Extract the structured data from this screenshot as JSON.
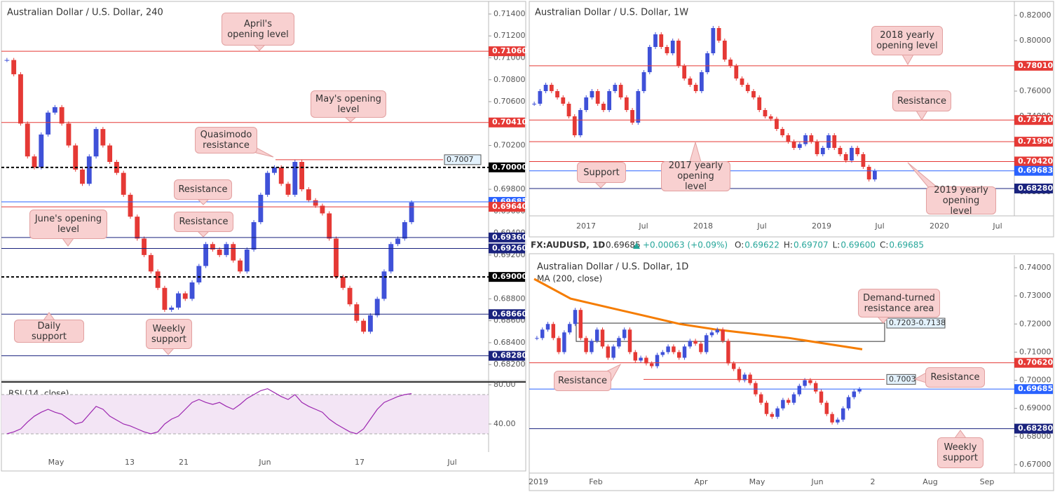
{
  "header": {
    "symbol": "FX:AUDUSD, 1D",
    "price": "0.69685",
    "change": "+0.00063 (+0.09%)",
    "items": [
      {
        "label": "O:",
        "value": "0.69622"
      },
      {
        "label": "H:",
        "value": "0.69707"
      },
      {
        "label": "L:",
        "value": "0.69600"
      },
      {
        "label": "C:",
        "value": "0.69685"
      }
    ]
  },
  "panels": [
    {
      "title": "Australian Dollar / U.S. Dollar, 240",
      "ylim": [
        0.68054,
        0.71515
      ],
      "yticks": [
        {
          "value": 0.714,
          "label": "0.71400"
        },
        {
          "value": 0.712,
          "label": "0.71200"
        },
        {
          "value": 0.71,
          "label": "0.71000"
        },
        {
          "value": 0.708,
          "label": "0.70800"
        },
        {
          "value": 0.706,
          "label": "0.70600"
        },
        {
          "value": 0.704,
          "label": "0.70400"
        },
        {
          "value": 0.702,
          "label": "0.70200"
        },
        {
          "value": 0.7,
          "label": "0.70000"
        },
        {
          "value": 0.698,
          "label": "0.69800"
        },
        {
          "value": 0.696,
          "label": "0.69600"
        },
        {
          "value": 0.694,
          "label": "0.69400"
        },
        {
          "value": 0.692,
          "label": "0.69200"
        },
        {
          "value": 0.69,
          "label": "0.69000"
        },
        {
          "value": 0.688,
          "label": "0.68800"
        },
        {
          "value": 0.686,
          "label": "0.68600"
        },
        {
          "value": 0.684,
          "label": "0.68400"
        },
        {
          "value": 0.682,
          "label": "0.68200"
        }
      ],
      "levels": [
        {
          "value": 0.7106,
          "label": "0.71060",
          "color": "#e53935"
        },
        {
          "value": 0.7041,
          "label": "0.70410",
          "color": "#e53935"
        },
        {
          "value": 0.7,
          "label": "0.70000",
          "color": "#000000",
          "style": "dashed"
        },
        {
          "value": 0.69685,
          "label": "0.69685",
          "color": "#2962ff"
        },
        {
          "value": 0.6964,
          "label": "0.69640",
          "color": "#e53935"
        },
        {
          "value": 0.6936,
          "label": "0.69360",
          "color": "#1a237e"
        },
        {
          "value": 0.6926,
          "label": "0.69260",
          "color": "#1a237e"
        },
        {
          "value": 0.69,
          "label": "0.69000",
          "color": "#000000",
          "style": "dashed"
        },
        {
          "value": 0.6866,
          "label": "0.68660",
          "color": "#1a237e"
        },
        {
          "value": 0.6828,
          "label": "0.68280",
          "color": "#1a237e"
        }
      ],
      "markers": [
        {
          "value": 0.7007,
          "label": "0.7007"
        }
      ],
      "xticks": [
        "May",
        "13",
        "21",
        "Jun",
        "17",
        "Jul"
      ],
      "closes": [
        0.7098,
        0.7085,
        0.704,
        0.701,
        0.7,
        0.703,
        0.705,
        0.7055,
        0.704,
        0.702,
        0.6998,
        0.6985,
        0.701,
        0.7035,
        0.702,
        0.7005,
        0.6995,
        0.6975,
        0.6955,
        0.6935,
        0.692,
        0.6905,
        0.689,
        0.687,
        0.6872,
        0.6885,
        0.688,
        0.6895,
        0.691,
        0.693,
        0.6925,
        0.692,
        0.693,
        0.6915,
        0.6905,
        0.6925,
        0.695,
        0.6975,
        0.6995,
        0.7,
        0.6985,
        0.6975,
        0.7005,
        0.698,
        0.697,
        0.6965,
        0.6958,
        0.6935,
        0.69,
        0.689,
        0.6875,
        0.686,
        0.685,
        0.6865,
        0.688,
        0.6905,
        0.693,
        0.6935,
        0.695,
        0.6968
      ],
      "annotations": [
        "April's opening level",
        "May's opening level",
        "Quasimodo resistance",
        "Resistance",
        "Resistance",
        "June's opening level",
        "Daily support",
        "Weekly support"
      ],
      "rsi": {
        "label": "RSI (14, close)",
        "ylim": [
          11.4,
          82.86
        ],
        "yticks": [
          {
            "value": 80,
            "label": "80.00"
          },
          {
            "value": 40,
            "label": "40.00"
          }
        ],
        "bands": [
          70,
          30
        ],
        "color": "#9c27b0",
        "values": [
          30,
          32,
          35,
          42,
          48,
          52,
          55,
          52,
          50,
          45,
          40,
          42,
          50,
          58,
          55,
          48,
          44,
          40,
          38,
          35,
          32,
          30,
          32,
          40,
          45,
          48,
          55,
          62,
          65,
          62,
          60,
          62,
          58,
          55,
          60,
          66,
          70,
          74,
          76,
          72,
          68,
          65,
          70,
          62,
          58,
          55,
          52,
          45,
          40,
          36,
          32,
          30,
          35,
          45,
          55,
          62,
          65,
          68,
          70,
          71
        ]
      }
    },
    {
      "title": "Australian Dollar / U.S. Dollar, 1W",
      "ylim": [
        0.66111,
        0.83111
      ],
      "yticks": [
        {
          "value": 0.82,
          "label": "0.82000"
        },
        {
          "value": 0.8,
          "label": "0.80000"
        },
        {
          "value": 0.78,
          "label": "0.78000"
        },
        {
          "value": 0.76,
          "label": "0.76000"
        },
        {
          "value": 0.74,
          "label": "0.74000"
        },
        {
          "value": 0.72,
          "label": "0.72000"
        },
        {
          "value": 0.7,
          "label": "0.70000"
        },
        {
          "value": 0.68,
          "label": "0.68000"
        }
      ],
      "levels": [
        {
          "value": 0.7801,
          "label": "0.78010",
          "color": "#e53935"
        },
        {
          "value": 0.7371,
          "label": "0.73710",
          "color": "#e53935"
        },
        {
          "value": 0.7199,
          "label": "0.71990",
          "color": "#e53935"
        },
        {
          "value": 0.7042,
          "label": "0.70420",
          "color": "#e53935"
        },
        {
          "value": 0.69683,
          "label": "0.69683",
          "color": "#2962ff"
        },
        {
          "value": 0.6828,
          "label": "0.68280",
          "color": "#1a237e"
        }
      ],
      "xticks": [
        "2017",
        "Jul",
        "2018",
        "Jul",
        "2019",
        "Jul",
        "2020",
        "Jul"
      ],
      "closes": [
        0.75,
        0.76,
        0.765,
        0.76,
        0.755,
        0.75,
        0.74,
        0.725,
        0.745,
        0.755,
        0.76,
        0.75,
        0.745,
        0.76,
        0.765,
        0.755,
        0.745,
        0.735,
        0.76,
        0.775,
        0.795,
        0.805,
        0.795,
        0.79,
        0.8,
        0.78,
        0.77,
        0.765,
        0.76,
        0.775,
        0.79,
        0.81,
        0.8,
        0.785,
        0.78,
        0.77,
        0.765,
        0.76,
        0.755,
        0.745,
        0.74,
        0.738,
        0.73,
        0.725,
        0.72,
        0.715,
        0.718,
        0.725,
        0.72,
        0.71,
        0.715,
        0.725,
        0.715,
        0.71,
        0.705,
        0.715,
        0.71,
        0.7,
        0.69,
        0.6968
      ],
      "annotations": [
        "2018 yearly opening level",
        "Resistance",
        "Support",
        "2017 yearly opening level",
        "2019 yearly opening level"
      ]
    },
    {
      "title": "Australian Dollar / U.S. Dollar, 1D",
      "indicator": "MA (200, close)",
      "ylim": [
        0.667,
        0.74448
      ],
      "yticks": [
        {
          "value": 0.74,
          "label": "0.74000"
        },
        {
          "value": 0.73,
          "label": "0.73000"
        },
        {
          "value": 0.72,
          "label": "0.72000"
        },
        {
          "value": 0.71,
          "label": "0.71000"
        },
        {
          "value": 0.7,
          "label": "0.70000"
        },
        {
          "value": 0.69,
          "label": "0.69000"
        },
        {
          "value": 0.68,
          "label": "0.68000"
        },
        {
          "value": 0.67,
          "label": "0.67000"
        }
      ],
      "levels": [
        {
          "value": 0.7062,
          "label": "0.70620",
          "color": "#e53935"
        },
        {
          "value": 0.69685,
          "label": "0.69685",
          "color": "#2962ff"
        },
        {
          "value": 0.6828,
          "label": "0.68280",
          "color": "#1a237e"
        }
      ],
      "markers": [
        {
          "value": 0.7003,
          "label": "0.7003"
        }
      ],
      "zone": {
        "label": "0.7203-0.7138",
        "high": 0.7203,
        "low": 0.7138
      },
      "ma": {
        "color": "#f57c00",
        "values": [
          0.736,
          0.729,
          0.726,
          0.723,
          0.72,
          0.718,
          0.7165,
          0.715,
          0.713,
          0.711
        ]
      },
      "xticks": [
        "2019",
        "Feb",
        "Apr",
        "May",
        "Jun",
        "2",
        "Aug",
        "Sep"
      ],
      "closes": [
        0.715,
        0.718,
        0.72,
        0.715,
        0.71,
        0.717,
        0.72,
        0.725,
        0.715,
        0.71,
        0.714,
        0.718,
        0.712,
        0.708,
        0.712,
        0.715,
        0.718,
        0.71,
        0.707,
        0.708,
        0.706,
        0.705,
        0.709,
        0.71,
        0.712,
        0.71,
        0.708,
        0.712,
        0.714,
        0.713,
        0.71,
        0.716,
        0.717,
        0.718,
        0.714,
        0.706,
        0.704,
        0.7,
        0.702,
        0.699,
        0.695,
        0.692,
        0.688,
        0.687,
        0.69,
        0.693,
        0.692,
        0.695,
        0.698,
        0.7,
        0.699,
        0.696,
        0.692,
        0.688,
        0.685,
        0.686,
        0.69,
        0.694,
        0.696,
        0.6968
      ],
      "annotations": [
        "Demand-turned resistance area",
        "Resistance",
        "Resistance",
        "Weekly support"
      ]
    }
  ]
}
